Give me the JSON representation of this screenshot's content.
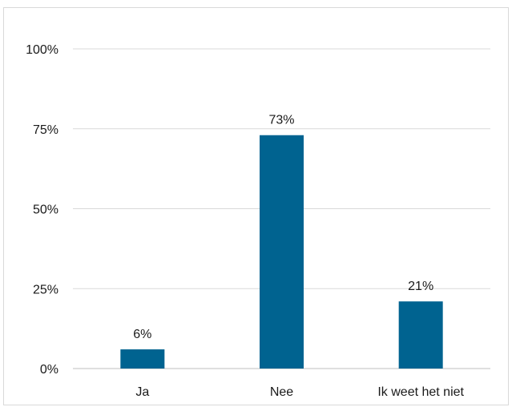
{
  "chart_data": {
    "type": "bar",
    "categories": [
      "Ja",
      "Nee",
      "Ik weet het niet"
    ],
    "values": [
      6,
      73,
      21
    ],
    "value_labels": [
      "6%",
      "73%",
      "21%"
    ],
    "y_ticks": [
      "0%",
      "25%",
      "50%",
      "75%",
      "100%"
    ],
    "ylim": [
      0,
      100
    ],
    "grid": true,
    "bar_color": "#006390"
  }
}
